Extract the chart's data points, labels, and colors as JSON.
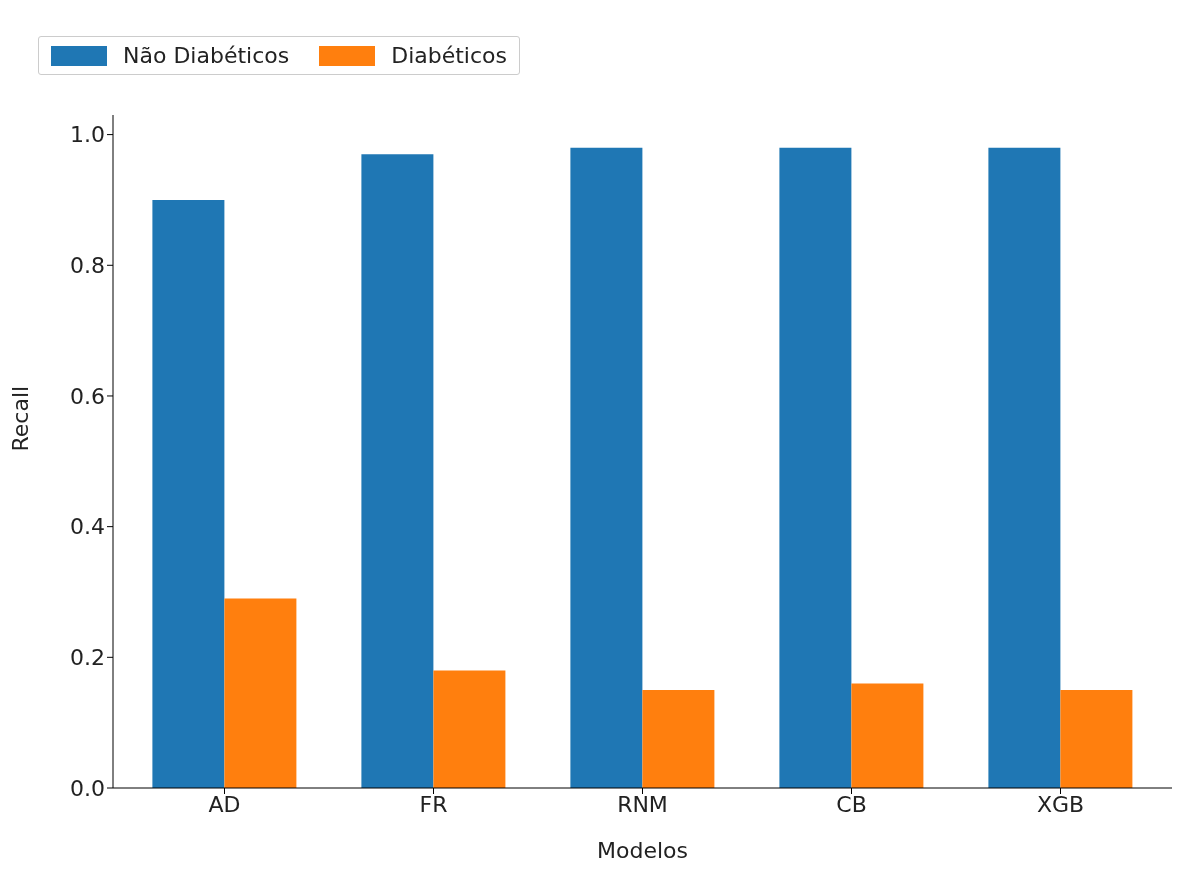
{
  "chart_data": {
    "type": "bar",
    "xlabel": "Modelos",
    "ylabel": "Recall",
    "categories": [
      "AD",
      "FR",
      "RNM",
      "CB",
      "XGB"
    ],
    "series": [
      {
        "name": "Não Diabéticos",
        "color": "#1f77b4",
        "values": [
          0.9,
          0.97,
          0.98,
          0.98,
          0.98
        ]
      },
      {
        "name": "Diabéticos",
        "color": "#ff7f0e",
        "values": [
          0.29,
          0.18,
          0.15,
          0.16,
          0.15
        ]
      }
    ],
    "ylim": [
      0,
      1.03
    ],
    "yticks": [
      {
        "value": 0,
        "label": "0.0"
      },
      {
        "value": 0.2,
        "label": "0.2"
      },
      {
        "value": 0.4,
        "label": "0.4"
      },
      {
        "value": 0.6,
        "label": "0.6"
      },
      {
        "value": 0.8,
        "label": "0.8"
      },
      {
        "value": 1,
        "label": "1.0"
      }
    ],
    "legend": "top",
    "grid": false
  }
}
